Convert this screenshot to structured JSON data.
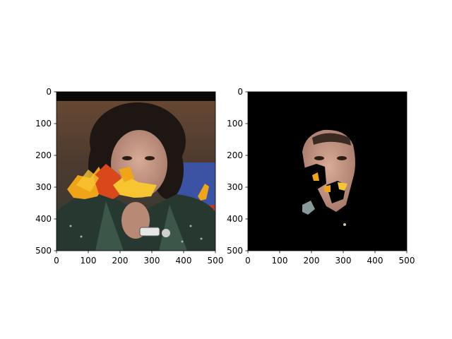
{
  "figure": {
    "panels": [
      {
        "name": "original-photo",
        "image_desc": "photo",
        "x_ticks": [
          "0",
          "100",
          "200",
          "300",
          "400",
          "500"
        ],
        "y_ticks": [
          "0",
          "100",
          "200",
          "300",
          "400",
          "500"
        ],
        "x_range": [
          0,
          500
        ],
        "y_range": [
          0,
          500
        ]
      },
      {
        "name": "masked-face",
        "x_ticks": [
          "0",
          "100",
          "200",
          "300",
          "400",
          "500"
        ],
        "y_ticks": [
          "0",
          "100",
          "200",
          "300",
          "400",
          "500"
        ],
        "x_range": [
          0,
          500
        ],
        "y_range": [
          0,
          500
        ]
      }
    ],
    "colors": {
      "axis": "#000000",
      "background": "#ffffff",
      "mask_background": "#000000",
      "leaf_orange": "#f0a418",
      "leaf_red": "#d9481a",
      "leaf_yellow": "#f7c531",
      "jacket": "#26382f",
      "skin": "#c89a86",
      "hair": "#1e1612"
    }
  }
}
